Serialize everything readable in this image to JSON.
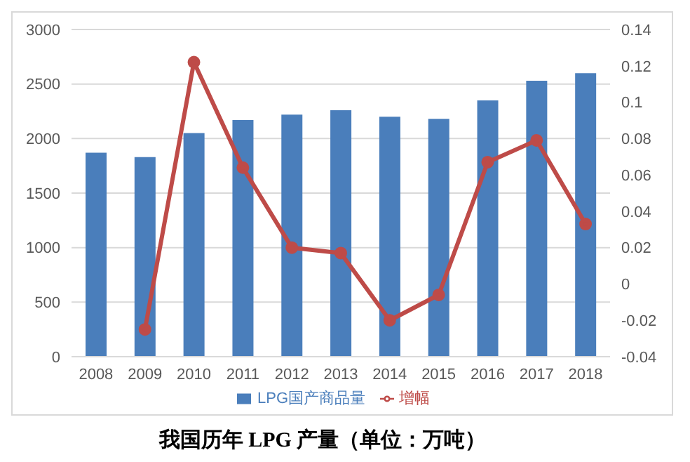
{
  "chart_data": {
    "type": "bar",
    "title": "我国历年 LPG 产量（单位：万吨）",
    "categories": [
      "2008",
      "2009",
      "2010",
      "2011",
      "2012",
      "2013",
      "2014",
      "2015",
      "2016",
      "2017",
      "2018"
    ],
    "series": [
      {
        "name": "LPG国产商品量",
        "color": "#4a7ebb",
        "values": [
          1870,
          1830,
          2050,
          2170,
          2220,
          2260,
          2200,
          2180,
          2350,
          2530,
          2600
        ]
      },
      {
        "name": "增幅",
        "type": "line",
        "axis": "y2",
        "color": "#be4b48",
        "marker": "circle",
        "values": [
          null,
          -0.025,
          0.122,
          0.064,
          0.02,
          0.017,
          -0.02,
          -0.006,
          0.067,
          0.079,
          0.033
        ]
      }
    ],
    "ylim": [
      0,
      3000
    ],
    "yticks": [
      0,
      500,
      1000,
      1500,
      2000,
      2500,
      3000
    ],
    "y2lim": [
      -0.04,
      0.14
    ],
    "y2ticks": [
      -0.04,
      -0.02,
      0,
      0.02,
      0.04,
      0.06,
      0.08,
      0.1,
      0.12,
      0.14
    ],
    "grid": "y",
    "legend": "bottom"
  }
}
